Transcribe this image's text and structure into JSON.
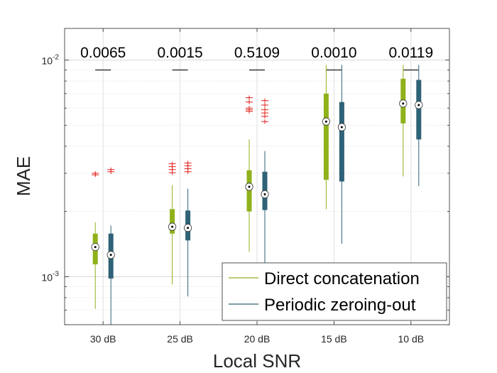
{
  "chart_data": {
    "type": "boxplot",
    "title": "",
    "xlabel": "Local SNR",
    "ylabel": "MAE",
    "yscale": "log",
    "ylim": [
      0.0006,
      0.014
    ],
    "y_tick_labels": [
      {
        "value": 0.001,
        "base": "10",
        "exp": "-3"
      },
      {
        "value": 0.01,
        "base": "10",
        "exp": "-2"
      }
    ],
    "grid": true,
    "legend_position": "bottom-right",
    "categories": [
      "30 dB",
      "25 dB",
      "20 dB",
      "15 dB",
      "10 dB"
    ],
    "p_values": [
      "0.0065",
      "0.0015",
      "0.5109",
      "0.0010",
      "0.0119"
    ],
    "bracket_value": 0.009,
    "series": [
      {
        "name": "Direct concatenation",
        "color": "#8fb11a",
        "boxes": [
          {
            "whisker_low": 0.00071,
            "q1": 0.00114,
            "median": 0.00137,
            "q3": 0.00158,
            "whisker_high": 0.00178,
            "outliers": [
              0.00295,
              0.003
            ]
          },
          {
            "whisker_low": 0.00092,
            "q1": 0.00158,
            "median": 0.0017,
            "q3": 0.00205,
            "whisker_high": 0.00265,
            "outliers": [
              0.00302,
              0.00312,
              0.00322,
              0.00332
            ]
          },
          {
            "whisker_low": 0.0013,
            "q1": 0.002,
            "median": 0.0026,
            "q3": 0.0031,
            "whisker_high": 0.0043,
            "outliers": [
              0.0058,
              0.0059,
              0.006,
              0.0064,
              0.0067
            ]
          },
          {
            "whisker_low": 0.00205,
            "q1": 0.0028,
            "median": 0.0052,
            "q3": 0.007,
            "whisker_high": 0.0095,
            "outliers": []
          },
          {
            "whisker_low": 0.0029,
            "q1": 0.0051,
            "median": 0.0063,
            "q3": 0.0082,
            "whisker_high": 0.0095,
            "outliers": []
          }
        ]
      },
      {
        "name": "Periodic zeroing-out",
        "color": "#2f6276",
        "boxes": [
          {
            "whisker_low": 0.0006,
            "q1": 0.00098,
            "median": 0.00126,
            "q3": 0.00158,
            "whisker_high": 0.00172,
            "outliers": [
              0.00305,
              0.00312
            ]
          },
          {
            "whisker_low": 0.00081,
            "q1": 0.00147,
            "median": 0.00168,
            "q3": 0.00202,
            "whisker_high": 0.00255,
            "outliers": [
              0.00305,
              0.00315,
              0.00325,
              0.00335
            ]
          },
          {
            "whisker_low": 0.0011,
            "q1": 0.00203,
            "median": 0.0024,
            "q3": 0.00305,
            "whisker_high": 0.0038,
            "outliers": [
              0.0052,
              0.0055,
              0.0057,
              0.0059,
              0.0062,
              0.0065
            ]
          },
          {
            "whisker_low": 0.00142,
            "q1": 0.00275,
            "median": 0.0049,
            "q3": 0.0064,
            "whisker_high": 0.0095,
            "outliers": []
          },
          {
            "whisker_low": 0.00262,
            "q1": 0.0043,
            "median": 0.0062,
            "q3": 0.0081,
            "whisker_high": 0.0095,
            "outliers": []
          }
        ]
      }
    ]
  }
}
